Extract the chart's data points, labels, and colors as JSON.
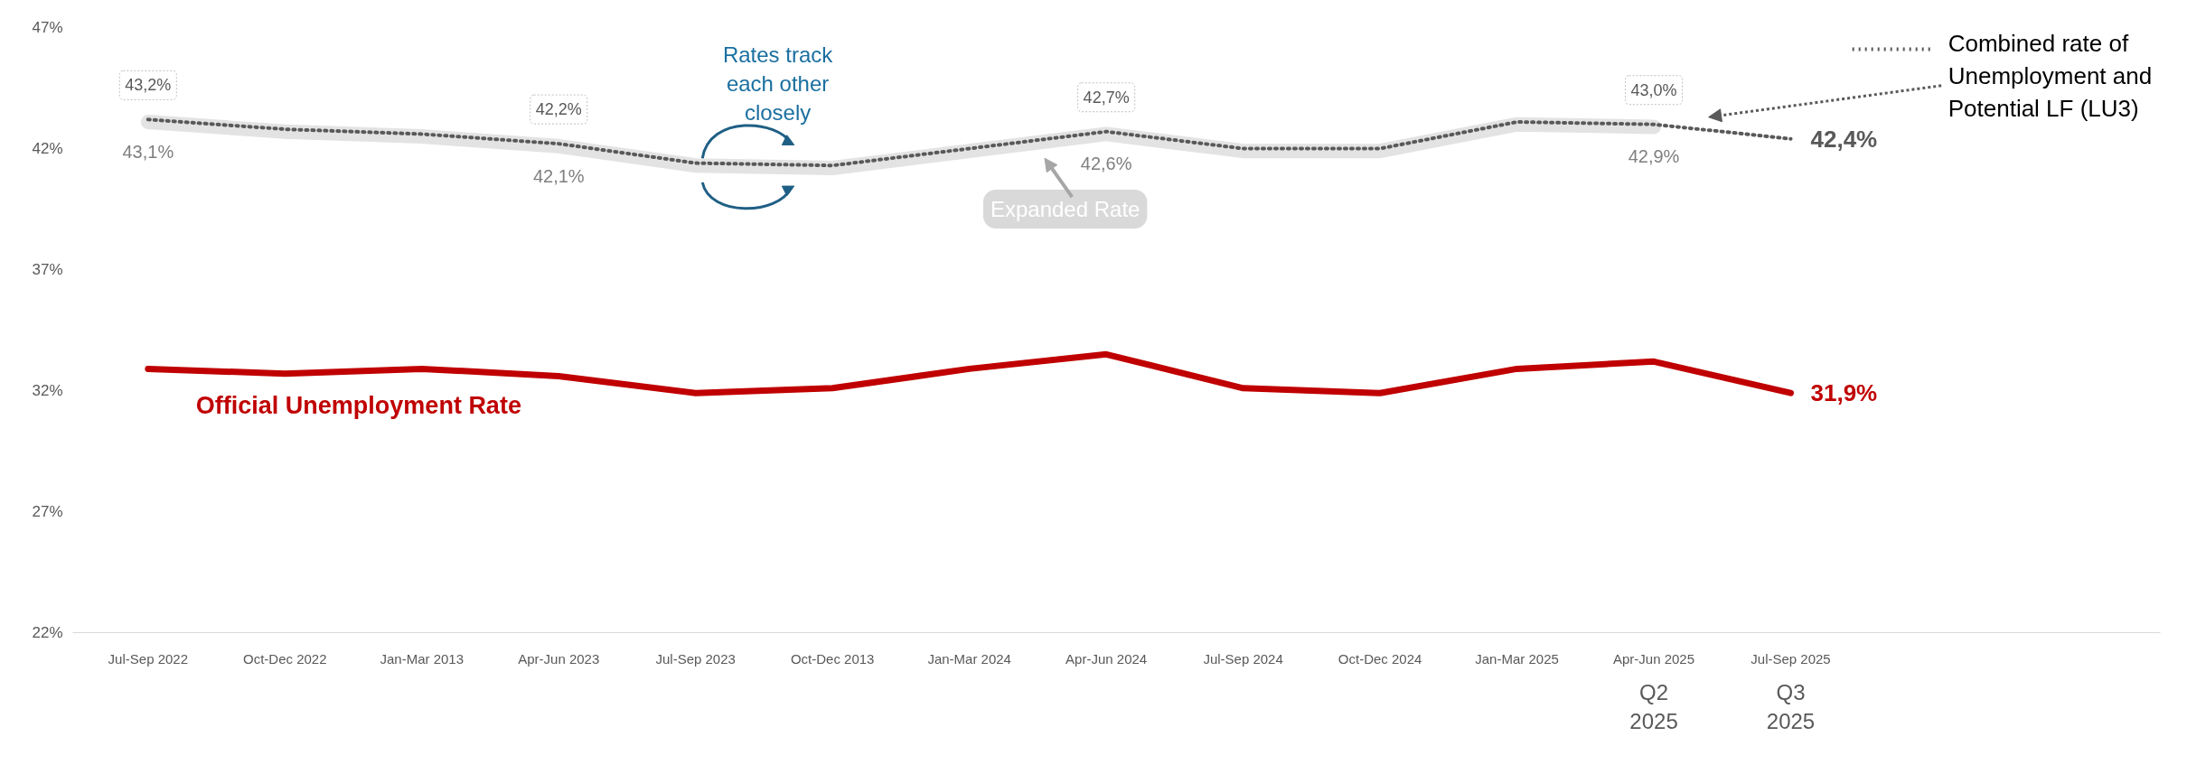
{
  "chart_data": {
    "type": "line",
    "categories": [
      "Jul-Sep 2022",
      "Oct-Dec 2022",
      "Jan-Mar 2013",
      "Apr-Jun 2023",
      "Jul-Sep 2023",
      "Oct-Dec 2013",
      "Jan-Mar 2024",
      "Apr-Jun 2024",
      "Jul-Sep 2024",
      "Oct-Dec 2024",
      "Jan-Mar 2025",
      "Apr-Jun 2025",
      "Jul-Sep 2025"
    ],
    "ylim": [
      22,
      47
    ],
    "yticks": [
      {
        "value": 22,
        "label": "22%"
      },
      {
        "value": 27,
        "label": "27%"
      },
      {
        "value": 32,
        "label": "32%"
      },
      {
        "value": 37,
        "label": "37%"
      },
      {
        "value": 42,
        "label": "42%"
      },
      {
        "value": 47,
        "label": "47%"
      }
    ],
    "grid": false,
    "legend": "top right",
    "marker": "none",
    "series": [
      {
        "name": "Expanded Rate",
        "color": "#e3e3e3",
        "line_style": "solid",
        "values": [
          43.1,
          42.7,
          42.5,
          42.1,
          41.3,
          41.2,
          41.9,
          42.6,
          41.9,
          41.9,
          43.0,
          42.9,
          null
        ],
        "value_labels": [
          "43,1%",
          null,
          null,
          "42,1%",
          null,
          null,
          null,
          "42,6%",
          null,
          null,
          null,
          "42,9%",
          null
        ]
      },
      {
        "name": "Combined rate of Unemployment and Potential LF (LU3)",
        "color": "#595959",
        "line_style": "dotted",
        "values": [
          43.2,
          42.8,
          42.6,
          42.2,
          41.4,
          41.3,
          42.0,
          42.7,
          42.0,
          42.0,
          43.1,
          43.0,
          42.4
        ],
        "value_labels": [
          "43,2%",
          null,
          null,
          "42,2%",
          null,
          null,
          null,
          "42,7%",
          null,
          null,
          null,
          "43,0%",
          "42,4%"
        ]
      },
      {
        "name": "Official Unemployment Rate",
        "color": "#c00000",
        "line_style": "solid",
        "values": [
          32.9,
          32.7,
          32.9,
          32.6,
          31.9,
          32.1,
          32.9,
          33.5,
          32.1,
          31.9,
          32.9,
          33.2,
          31.9
        ],
        "value_labels": [
          null,
          null,
          null,
          null,
          null,
          null,
          null,
          null,
          null,
          null,
          null,
          null,
          "31,9%"
        ]
      }
    ],
    "annotations": [
      "Rates track each other closely",
      "Q2\n2025",
      "Q3\n2025"
    ]
  }
}
